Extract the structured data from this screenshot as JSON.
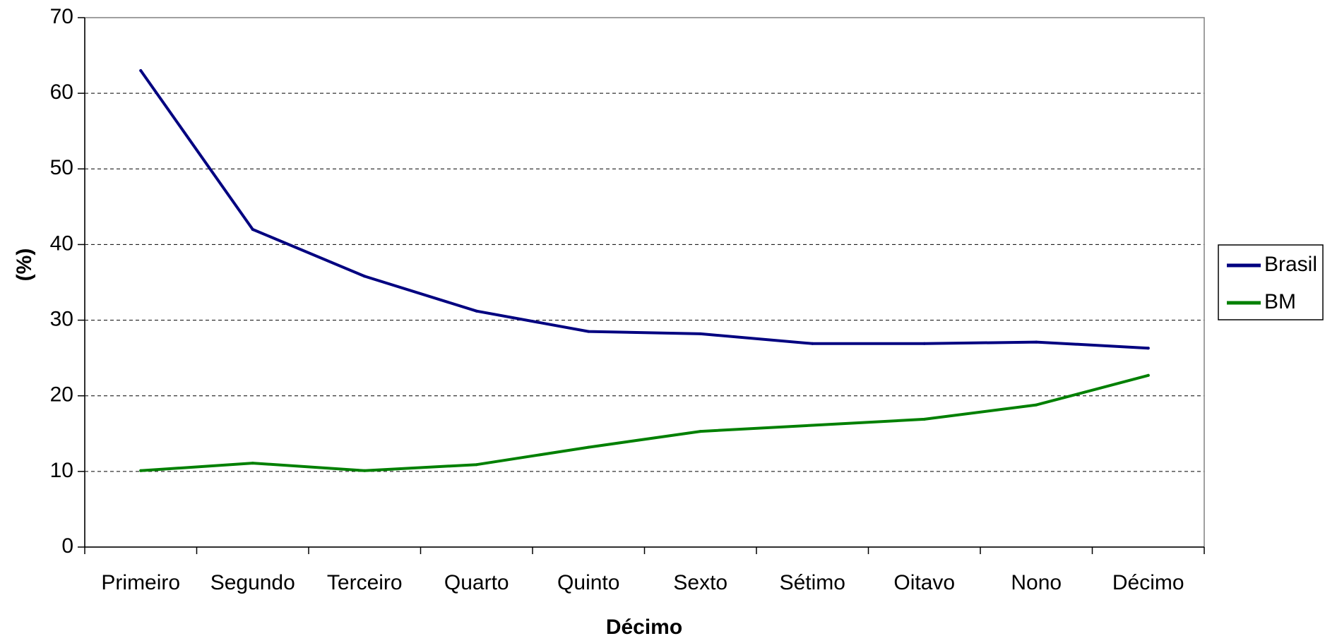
{
  "chart_data": {
    "type": "line",
    "title": "",
    "xlabel": "Décimo",
    "ylabel": "(%)",
    "ylim": [
      0,
      70
    ],
    "yticks": [
      0,
      10,
      20,
      30,
      40,
      50,
      60,
      70
    ],
    "grid": "horizontal-dashed",
    "legend_position": "right",
    "categories": [
      "Primeiro",
      "Segundo",
      "Terceiro",
      "Quarto",
      "Quinto",
      "Sexto",
      "Sétimo",
      "Oitavo",
      "Nono",
      "Décimo"
    ],
    "series": [
      {
        "name": "Brasil",
        "color": "#000080",
        "values": [
          63.0,
          42.0,
          35.8,
          31.2,
          28.5,
          28.2,
          26.9,
          26.9,
          27.1,
          26.3
        ]
      },
      {
        "name": "BM",
        "color": "#008000",
        "values": [
          10.1,
          11.1,
          10.1,
          10.9,
          13.2,
          15.3,
          16.1,
          16.9,
          18.8,
          22.7
        ]
      }
    ]
  }
}
